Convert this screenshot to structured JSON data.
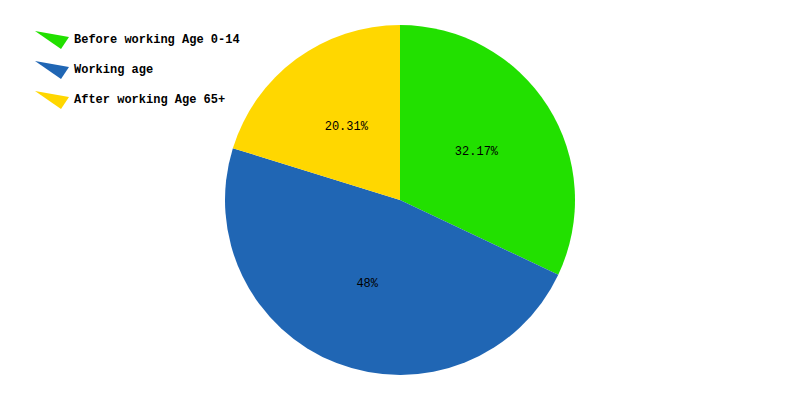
{
  "chart_data": {
    "type": "pie",
    "categories": [
      "Before working Age 0-14",
      "Working age",
      "After working Age 65+"
    ],
    "values": [
      32.17,
      48,
      20.31
    ],
    "value_labels": [
      "32.17%",
      "48%",
      "20.31%"
    ],
    "colors": [
      "#22e000",
      "#2066b4",
      "#ffd700"
    ],
    "data_labels": true,
    "legend": "top-left"
  }
}
